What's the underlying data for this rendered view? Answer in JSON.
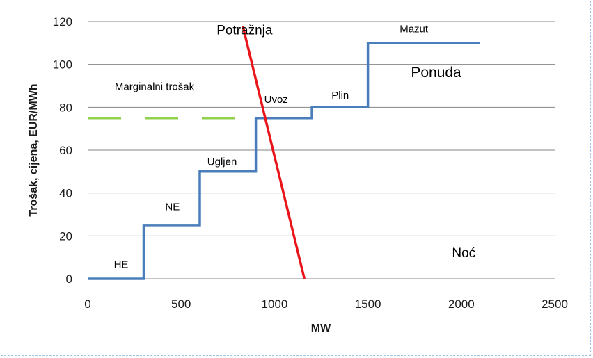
{
  "chart_data": {
    "type": "line",
    "xlabel": "MW",
    "ylabel": "Trošak, cijena, EUR/MWh",
    "xlim": [
      0,
      2500
    ],
    "ylim": [
      0,
      120
    ],
    "xticks": [
      0,
      500,
      1000,
      1500,
      2000,
      2500
    ],
    "yticks": [
      0,
      20,
      40,
      60,
      80,
      100,
      120
    ],
    "grid": "horizontal",
    "series": [
      {
        "name": "Ponuda",
        "color": "#4a7ebb",
        "style": "step",
        "points": [
          [
            0,
            0
          ],
          [
            300,
            0
          ],
          [
            300,
            25
          ],
          [
            600,
            25
          ],
          [
            600,
            50
          ],
          [
            900,
            50
          ],
          [
            900,
            75
          ],
          [
            1200,
            75
          ],
          [
            1200,
            80
          ],
          [
            1500,
            80
          ],
          [
            1500,
            110
          ],
          [
            2100,
            110
          ]
        ]
      },
      {
        "name": "Potražnja",
        "color": "#e8161b",
        "style": "line",
        "points": [
          [
            830,
            118
          ],
          [
            1160,
            0
          ]
        ]
      },
      {
        "name": "Marginalni trošak",
        "color": "#92d050",
        "style": "dashed",
        "points": [
          [
            0,
            75
          ],
          [
            900,
            75
          ]
        ]
      }
    ],
    "annotations": [
      {
        "text": "Potražnja",
        "x": 690,
        "y": 114,
        "size": 19
      },
      {
        "text": "Mazut",
        "x": 1670,
        "y": 115,
        "size": 15
      },
      {
        "text": "Ponuda",
        "x": 1730,
        "y": 94,
        "size": 21
      },
      {
        "text": "Marginalni trošak",
        "x": 145,
        "y": 88,
        "size": 15
      },
      {
        "text": "Uvoz",
        "x": 945,
        "y": 82,
        "size": 15
      },
      {
        "text": "Plin",
        "x": 1305,
        "y": 84,
        "size": 15
      },
      {
        "text": "Ugljen",
        "x": 640,
        "y": 53,
        "size": 15
      },
      {
        "text": "NE",
        "x": 415,
        "y": 32,
        "size": 15
      },
      {
        "text": "HE",
        "x": 140,
        "y": 5,
        "size": 15
      },
      {
        "text": "Noć",
        "x": 1950,
        "y": 10,
        "size": 19
      }
    ]
  }
}
